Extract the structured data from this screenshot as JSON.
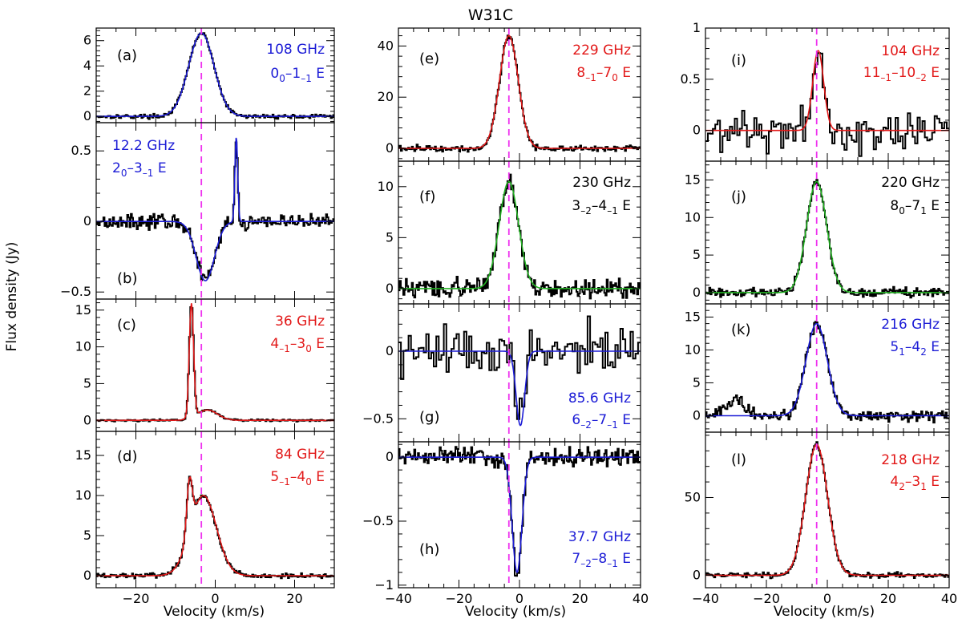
{
  "figure": {
    "title": "W31C",
    "ylabel": "Flux density (Jy)",
    "xlabel": "Velocity (km/s)",
    "vlsr_marker": -3.5,
    "colors": {
      "blue": "#1c1cd6",
      "red": "#e21818",
      "green": "#22b022",
      "black": "#000000",
      "magenta": "#ee33ee"
    }
  },
  "chart_data": [
    {
      "type": "line",
      "id": "a",
      "label": "(a)",
      "freq": "108 GHz",
      "trans": {
        "main": "0",
        "parts": [
          {
            "t": "0",
            "s": "sub"
          },
          {
            "t": "–1",
            "s": ""
          },
          {
            "t": "–1",
            "s": "sub"
          },
          {
            "t": " E",
            "s": ""
          }
        ]
      },
      "trans_text": "0_0–1_–1 E",
      "color": "blue",
      "xlim": [
        -30,
        30
      ],
      "ylim": [
        -0.5,
        7
      ],
      "yticks": [
        0,
        2,
        4,
        6
      ],
      "xticks": [
        -20,
        0,
        20
      ],
      "profile": {
        "comps": [
          {
            "amp": 6.6,
            "mu": -3.5,
            "sig": 3.2
          }
        ],
        "noise": 0.08
      }
    },
    {
      "type": "line",
      "id": "b",
      "label": "(b)",
      "freq": "12.2 GHz",
      "trans": {
        "main": "2",
        "parts": [
          {
            "t": "0",
            "s": "sub"
          },
          {
            "t": "–3",
            "s": ""
          },
          {
            "t": "–1",
            "s": "sub"
          },
          {
            "t": " E",
            "s": ""
          }
        ]
      },
      "trans_text": "2_0–3_–1 E",
      "color": "blue",
      "xlim": [
        -30,
        30
      ],
      "ylim": [
        -0.55,
        0.7
      ],
      "yticks": [
        -0.5,
        0,
        0.5
      ],
      "xticks": [
        -20,
        0,
        20
      ],
      "profile": {
        "comps": [
          {
            "amp": -0.42,
            "mu": -2.5,
            "sig": 2.3
          },
          {
            "amp": 0.6,
            "mu": 5.3,
            "sig": 0.35
          }
        ],
        "noise": 0.025
      }
    },
    {
      "type": "line",
      "id": "c",
      "label": "(c)",
      "freq": "36 GHz",
      "trans": {
        "main": "4",
        "parts": [
          {
            "t": "–1",
            "s": "sub"
          },
          {
            "t": "–3",
            "s": ""
          },
          {
            "t": "0",
            "s": "sub"
          },
          {
            "t": " E",
            "s": ""
          }
        ]
      },
      "trans_text": "4_–1–3_0 E",
      "color": "red",
      "xlim": [
        -30,
        30
      ],
      "ylim": [
        -1.5,
        16.5
      ],
      "yticks": [
        0,
        5,
        10,
        15
      ],
      "xticks": [
        -20,
        0,
        20
      ],
      "profile": {
        "comps": [
          {
            "amp": 15.5,
            "mu": -6.0,
            "sig": 0.55
          },
          {
            "amp": 1.4,
            "mu": -2.0,
            "sig": 2.6
          }
        ],
        "noise": 0.07
      }
    },
    {
      "type": "line",
      "id": "d",
      "label": "(d)",
      "freq": "84 GHz",
      "trans": {
        "main": "5",
        "parts": [
          {
            "t": "–1",
            "s": "sub"
          },
          {
            "t": "–4",
            "s": ""
          },
          {
            "t": "0",
            "s": "sub"
          },
          {
            "t": " E",
            "s": ""
          }
        ]
      },
      "trans_text": "5_–1–4_0 E",
      "color": "red",
      "xlim": [
        -30,
        30
      ],
      "ylim": [
        -1.5,
        18
      ],
      "yticks": [
        0,
        5,
        10,
        15
      ],
      "xticks": [
        -20,
        0,
        20
      ],
      "profile": {
        "comps": [
          {
            "amp": 6.5,
            "mu": -6.5,
            "sig": 0.7
          },
          {
            "amp": 10.0,
            "mu": -3.0,
            "sig": 3.3
          }
        ],
        "noise": 0.15
      }
    },
    {
      "type": "line",
      "id": "e",
      "label": "(e)",
      "freq": "229 GHz",
      "trans": {
        "main": "8",
        "parts": [
          {
            "t": "–1",
            "s": "sub"
          },
          {
            "t": "–7",
            "s": ""
          },
          {
            "t": "0",
            "s": "sub"
          },
          {
            "t": " E",
            "s": ""
          }
        ]
      },
      "trans_text": "8_–1–7_0 E",
      "color": "red",
      "xlim": [
        -40,
        40
      ],
      "ylim": [
        -5,
        47
      ],
      "yticks": [
        0,
        20,
        40
      ],
      "xticks": [
        -40,
        -20,
        0,
        20,
        40
      ],
      "profile": {
        "comps": [
          {
            "amp": 44,
            "mu": -3.5,
            "sig": 3.1
          }
        ],
        "noise": 0.6
      }
    },
    {
      "type": "line",
      "id": "f",
      "label": "(f)",
      "freq": "230 GHz",
      "trans": {
        "main": "3",
        "parts": [
          {
            "t": "–2",
            "s": "sub"
          },
          {
            "t": "–4",
            "s": ""
          },
          {
            "t": "–1",
            "s": "sub"
          },
          {
            "t": " E",
            "s": ""
          }
        ]
      },
      "trans_text": "3_–2–4_–1 E",
      "color": "green",
      "labelcolor": "black",
      "xlim": [
        -40,
        40
      ],
      "ylim": [
        -1.5,
        12.5
      ],
      "yticks": [
        0,
        5,
        10
      ],
      "xticks": [
        -40,
        -20,
        0,
        20,
        40
      ],
      "profile": {
        "comps": [
          {
            "amp": 10.5,
            "mu": -3.5,
            "sig": 3.2
          }
        ],
        "noise": 0.45
      }
    },
    {
      "type": "line",
      "id": "g",
      "label": "(g)",
      "freq": "85.6 GHz",
      "trans": {
        "main": "6",
        "parts": [
          {
            "t": "–2",
            "s": "sub"
          },
          {
            "t": "–7",
            "s": ""
          },
          {
            "t": "–1",
            "s": "sub"
          },
          {
            "t": " E",
            "s": ""
          }
        ]
      },
      "trans_text": "6_–2–7_–1 E",
      "color": "blue",
      "xlim": [
        -40,
        40
      ],
      "ylim": [
        -0.67,
        0.35
      ],
      "yticks": [
        -0.5,
        0
      ],
      "xticks": [
        -40,
        -20,
        0,
        20,
        40
      ],
      "profile": {
        "comps": [
          {
            "amp": -0.55,
            "mu": 0.3,
            "sig": 1.4
          }
        ],
        "noise": 0.09,
        "bins": 96
      }
    },
    {
      "type": "line",
      "id": "h",
      "label": "(h)",
      "freq": "37.7 GHz",
      "trans": {
        "main": "7",
        "parts": [
          {
            "t": "–2",
            "s": "sub"
          },
          {
            "t": "–8",
            "s": ""
          },
          {
            "t": "–1",
            "s": "sub"
          },
          {
            "t": " E",
            "s": ""
          }
        ]
      },
      "trans_text": "7_–2–8_–1 E",
      "color": "blue",
      "xlim": [
        -40,
        40
      ],
      "ylim": [
        -1.02,
        0.12
      ],
      "yticks": [
        -1,
        -0.5,
        0
      ],
      "xticks": [
        -40,
        -20,
        0,
        20,
        40
      ],
      "profile": {
        "comps": [
          {
            "amp": -0.9,
            "mu": -0.8,
            "sig": 1.6
          }
        ],
        "noise": 0.035
      }
    },
    {
      "type": "line",
      "id": "i",
      "label": "(i)",
      "freq": "104 GHz",
      "trans": {
        "main": "11",
        "parts": [
          {
            "t": "–1",
            "s": "sub"
          },
          {
            "t": "–10",
            "s": ""
          },
          {
            "t": "–2",
            "s": "sub"
          },
          {
            "t": " E",
            "s": ""
          }
        ]
      },
      "trans_text": "11_–1–10_–2 E",
      "color": "red",
      "xlim": [
        -40,
        40
      ],
      "ylim": [
        -0.3,
        1.0
      ],
      "yticks": [
        0,
        0.5,
        1
      ],
      "xticks": [
        -40,
        -20,
        0,
        20,
        40
      ],
      "profile": {
        "comps": [
          {
            "amp": 0.78,
            "mu": -3.0,
            "sig": 1.8
          }
        ],
        "noise": 0.1,
        "bins": 100
      }
    },
    {
      "type": "line",
      "id": "j",
      "label": "(j)",
      "freq": "220 GHz",
      "trans": {
        "main": "8",
        "parts": [
          {
            "t": "0",
            "s": "sub"
          },
          {
            "t": "–7",
            "s": ""
          },
          {
            "t": "1",
            "s": "sub"
          },
          {
            "t": " E",
            "s": ""
          }
        ]
      },
      "trans_text": "8_0–7_1 E",
      "color": "green",
      "labelcolor": "black",
      "xlim": [
        -40,
        40
      ],
      "ylim": [
        -1.5,
        17.5
      ],
      "yticks": [
        0,
        5,
        10,
        15
      ],
      "xticks": [
        -40,
        -20,
        0,
        20,
        40
      ],
      "profile": {
        "comps": [
          {
            "amp": 14.8,
            "mu": -3.5,
            "sig": 3.3
          }
        ],
        "noise": 0.3
      }
    },
    {
      "type": "line",
      "id": "k",
      "label": "(k)",
      "freq": "216 GHz",
      "trans": {
        "main": "5",
        "parts": [
          {
            "t": "1",
            "s": "sub"
          },
          {
            "t": "–4",
            "s": ""
          },
          {
            "t": "2",
            "s": "sub"
          },
          {
            "t": " E",
            "s": ""
          }
        ]
      },
      "trans_text": "5_1–4_2 E",
      "color": "blue",
      "xlim": [
        -40,
        40
      ],
      "ylim": [
        -2.5,
        17
      ],
      "yticks": [
        0,
        5,
        10,
        15
      ],
      "xticks": [
        -40,
        -20,
        0,
        20,
        40
      ],
      "profile": {
        "comps": [
          {
            "amp": 14.0,
            "mu": -3.5,
            "sig": 3.5
          },
          {
            "amp": 2.3,
            "mu": -30,
            "sig": 3.0,
            "data_only": true
          }
        ],
        "noise": 0.45
      }
    },
    {
      "type": "line",
      "id": "l",
      "label": "(l)",
      "freq": "218 GHz",
      "trans": {
        "main": "4",
        "parts": [
          {
            "t": "2",
            "s": "sub"
          },
          {
            "t": "–3",
            "s": ""
          },
          {
            "t": "1",
            "s": "sub"
          },
          {
            "t": " E",
            "s": ""
          }
        ]
      },
      "trans_text": "4_2–3_1 E",
      "color": "red",
      "xlim": [
        -40,
        40
      ],
      "ylim": [
        -8,
        92
      ],
      "yticks": [
        0,
        50
      ],
      "xticks": [
        -40,
        -20,
        0,
        20,
        40
      ],
      "profile": {
        "comps": [
          {
            "amp": 84,
            "mu": -3.5,
            "sig": 3.6
          }
        ],
        "noise": 0.8
      }
    }
  ]
}
